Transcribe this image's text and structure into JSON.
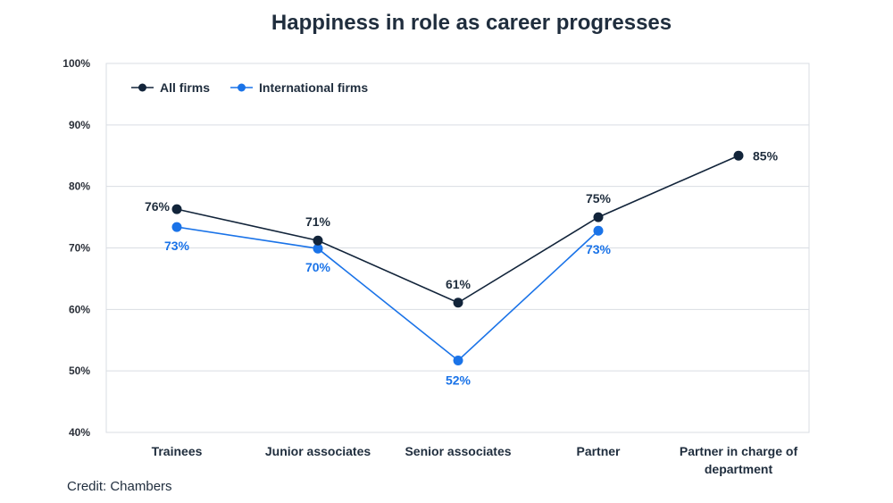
{
  "chart_data": {
    "type": "line",
    "title": "Happiness in role as career progresses",
    "categories": [
      "Trainees",
      "Junior associates",
      "Senior associates",
      "Partner",
      "Partner in charge of department"
    ],
    "ylim": [
      40,
      100
    ],
    "yticks": [
      40,
      50,
      60,
      70,
      80,
      90,
      100
    ],
    "ytick_labels": [
      "40%",
      "50%",
      "60%",
      "70%",
      "80%",
      "90%",
      "100%"
    ],
    "grid": true,
    "legend": "top-left",
    "series": [
      {
        "name": "All firms",
        "color": "#12243a",
        "values": [
          76.3,
          71.2,
          61.1,
          75.0,
          85.0
        ],
        "labels": [
          "76%",
          "71%",
          "61%",
          "75%",
          "85%"
        ]
      },
      {
        "name": "International firms",
        "color": "#1a73e8",
        "values": [
          73.4,
          69.9,
          51.7,
          72.8,
          null
        ],
        "labels": [
          "73%",
          "70%",
          "52%",
          "73%",
          null
        ]
      }
    ]
  },
  "credit": "Credit: Chambers"
}
